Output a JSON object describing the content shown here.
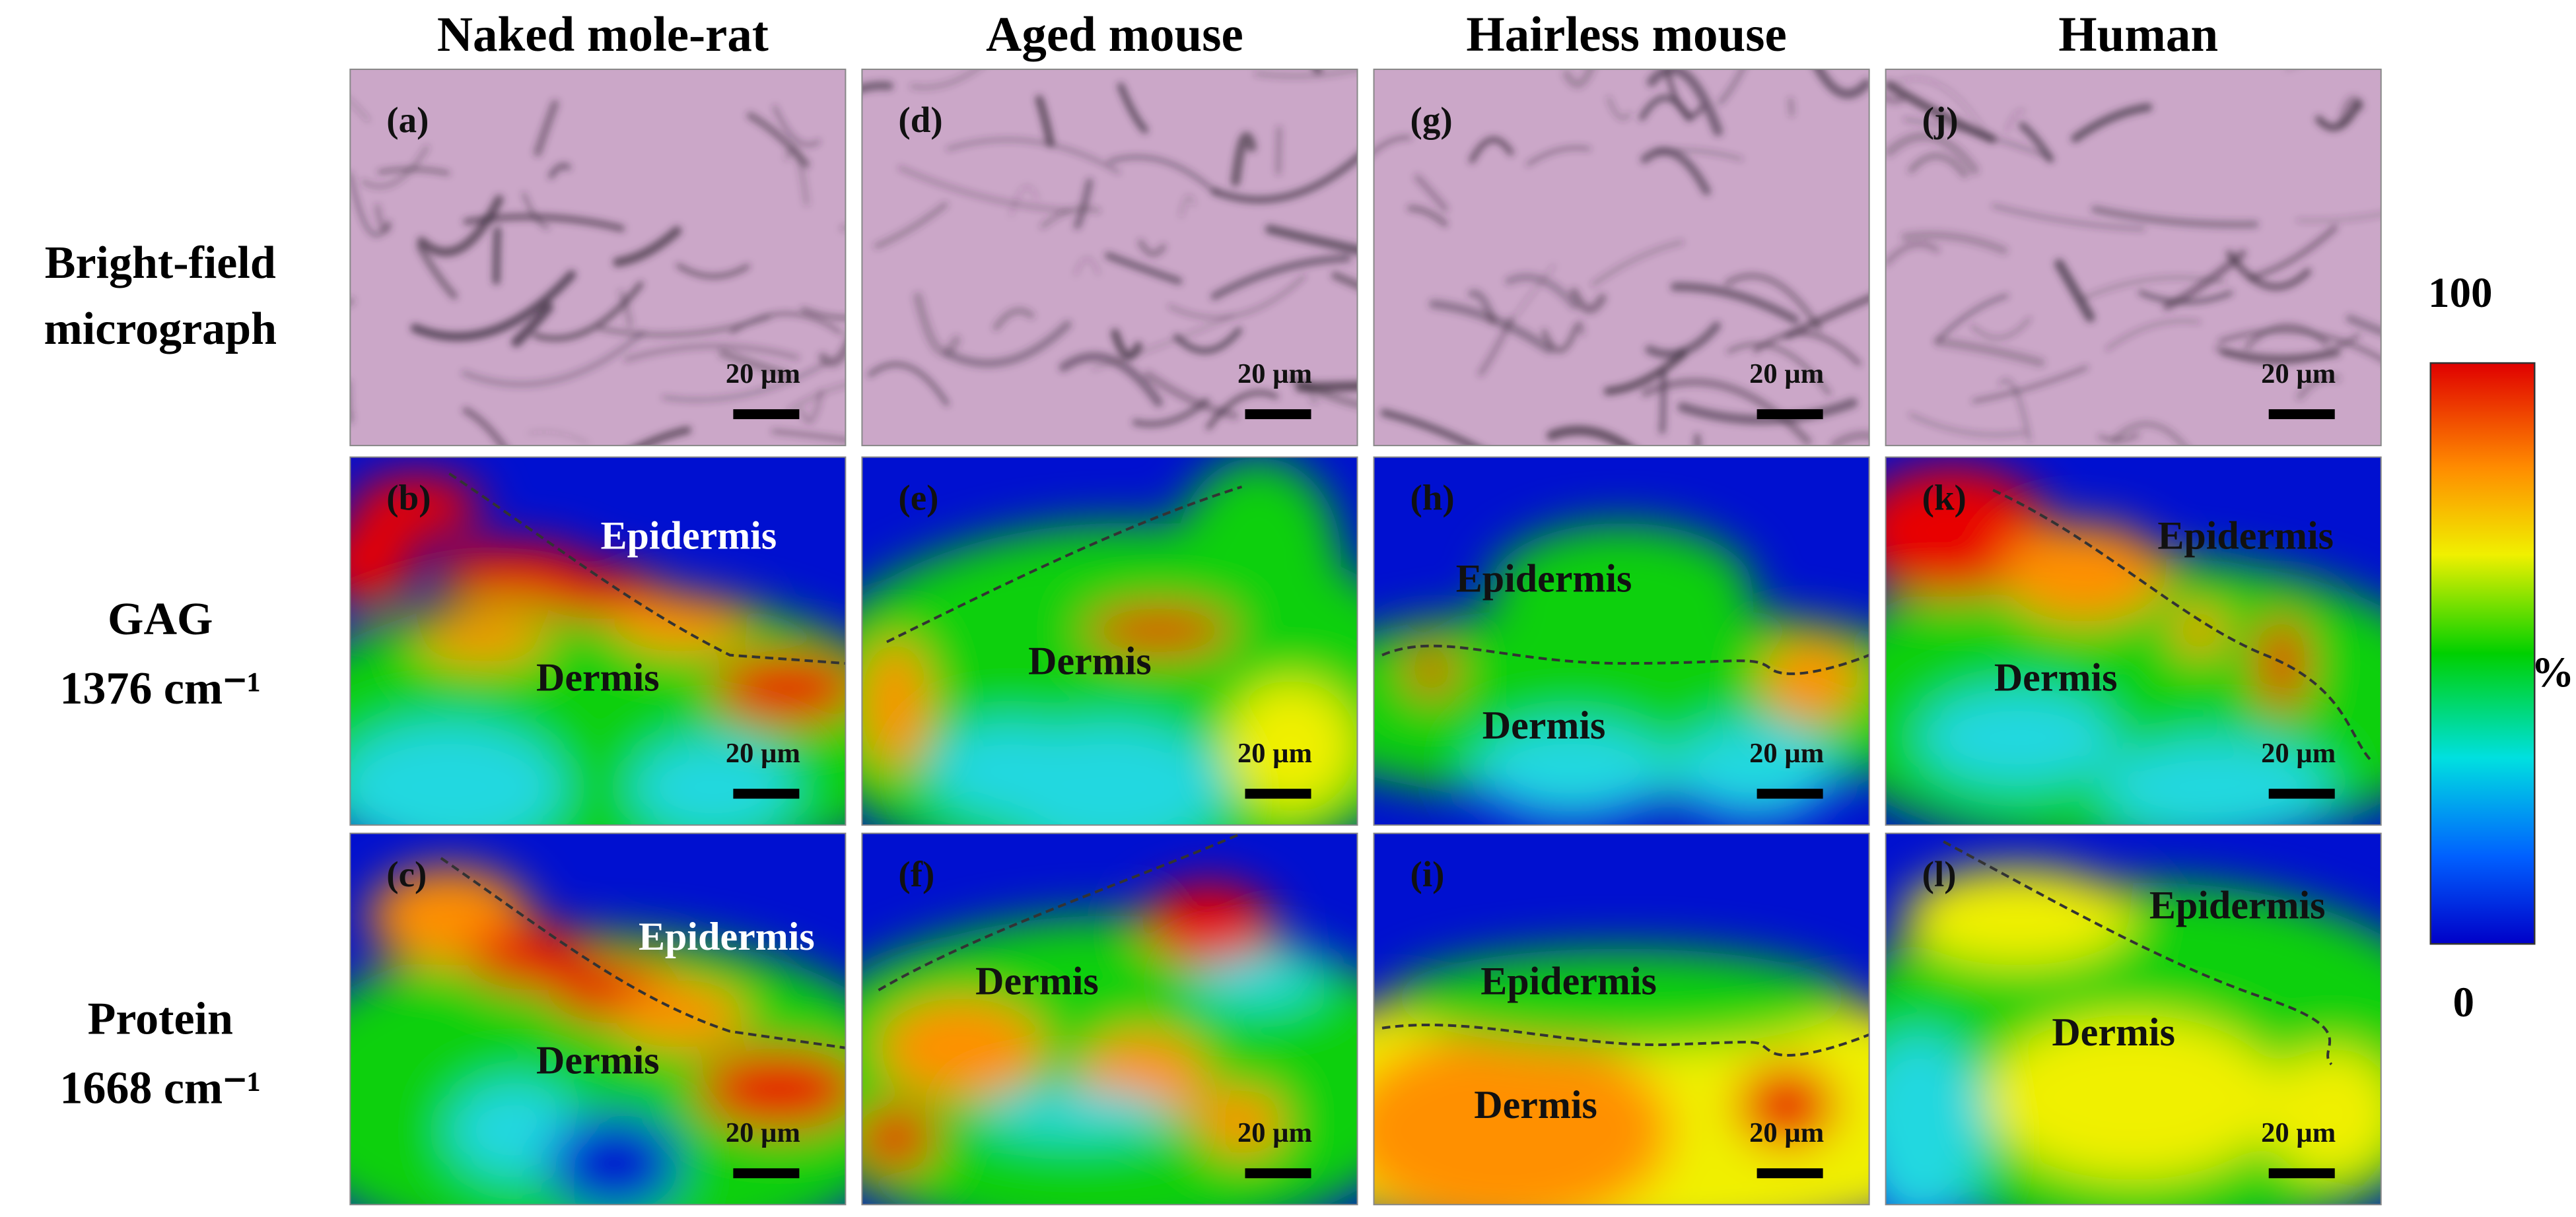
{
  "columns": [
    "Naked mole-rat",
    "Aged mouse",
    "Hairless mouse",
    "Human"
  ],
  "rows": [
    {
      "label": [
        "Bright-field",
        "micrograph"
      ],
      "panels": [
        {
          "letter": "(a)",
          "scale": "20 µm",
          "regions": []
        },
        {
          "letter": "(d)",
          "scale": "20 µm",
          "regions": []
        },
        {
          "letter": "(g)",
          "scale": "20 µm",
          "regions": []
        },
        {
          "letter": "(j)",
          "scale": "20 µm",
          "regions": []
        }
      ]
    },
    {
      "label": [
        "GAG",
        "1376 cm⁻¹"
      ],
      "panels": [
        {
          "letter": "(b)",
          "scale": "20 µm",
          "regions": [
            "Epidermis",
            "Dermis"
          ]
        },
        {
          "letter": "(e)",
          "scale": "20 µm",
          "regions": [
            "Dermis"
          ]
        },
        {
          "letter": "(h)",
          "scale": "20 µm",
          "regions": [
            "Epidermis",
            "Dermis"
          ]
        },
        {
          "letter": "(k)",
          "scale": "20 µm",
          "regions": [
            "Epidermis",
            "Dermis"
          ]
        }
      ]
    },
    {
      "label": [
        "Protein",
        "1668 cm⁻¹"
      ],
      "panels": [
        {
          "letter": "(c)",
          "scale": "20 µm",
          "regions": [
            "Epidermis",
            "Dermis"
          ]
        },
        {
          "letter": "(f)",
          "scale": "20 µm",
          "regions": [
            "Dermis"
          ]
        },
        {
          "letter": "(i)",
          "scale": "20 µm",
          "regions": [
            "Epidermis",
            "Dermis"
          ]
        },
        {
          "letter": "(l)",
          "scale": "20 µm",
          "regions": [
            "Epidermis",
            "Dermis"
          ]
        }
      ]
    }
  ],
  "colorbar": {
    "max": "100",
    "min": "0",
    "unit": "%"
  }
}
